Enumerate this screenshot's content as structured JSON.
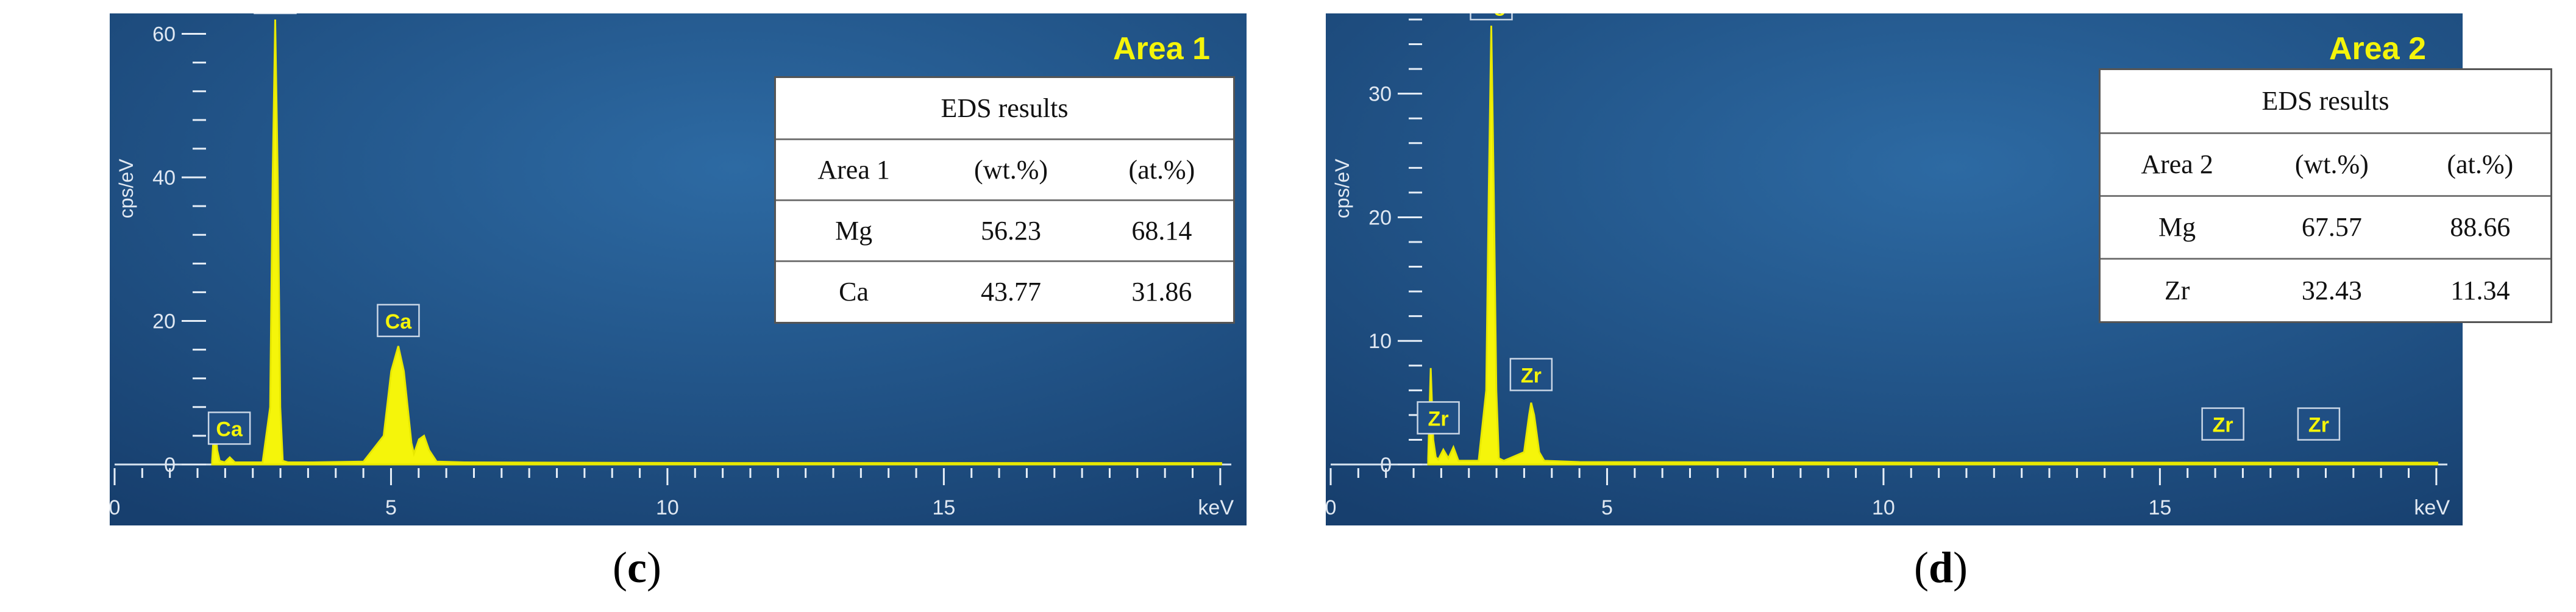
{
  "panels": [
    {
      "caption": "c",
      "area_label": "Area 1",
      "table": {
        "title": "EDS results",
        "header": [
          "Area 1",
          "(wt.%)",
          "(at.%)"
        ],
        "rows": [
          [
            "Mg",
            "56.23",
            "68.14"
          ],
          [
            "Ca",
            "43.77",
            "31.86"
          ]
        ]
      }
    },
    {
      "caption": "d",
      "area_label": "Area 2",
      "table": {
        "title": "EDS results",
        "header": [
          "Area 2",
          "(wt.%)",
          "(at.%)"
        ],
        "rows": [
          [
            "Mg",
            "67.57",
            "88.66"
          ],
          [
            "Zr",
            "32.43",
            "11.34"
          ]
        ]
      }
    }
  ],
  "chart_data": [
    {
      "type": "line",
      "title": "",
      "xlabel": "keV",
      "ylabel": "cps/eV",
      "xlim": [
        0,
        20.2
      ],
      "ylim": [
        0,
        62
      ],
      "xticks": [
        0,
        5,
        10,
        15
      ],
      "yticks": [
        0,
        20,
        40,
        60
      ],
      "series": [
        {
          "x": [
            0.0,
            0.05,
            0.1,
            0.15,
            0.25,
            0.35,
            0.45,
            0.6,
            1.0,
            1.15,
            1.2,
            1.25,
            1.3,
            1.35,
            1.4,
            1.5,
            2.0,
            3.0,
            3.4,
            3.55,
            3.69,
            3.8,
            3.95,
            4.0,
            4.1,
            4.2,
            4.3,
            4.45,
            5.0,
            10.0,
            20.0
          ],
          "y": [
            0.5,
            6.5,
            2.0,
            0.5,
            0.3,
            1.0,
            0.3,
            0.3,
            0.3,
            8.0,
            40.0,
            62.0,
            40.0,
            8.0,
            0.5,
            0.3,
            0.3,
            0.4,
            4.0,
            13.0,
            16.5,
            13.0,
            3.0,
            1.5,
            3.5,
            4.0,
            2.0,
            0.4,
            0.3,
            0.2,
            0.2
          ]
        }
      ],
      "peak_labels": [
        {
          "label": "Mg",
          "x": 1.25,
          "y": 62
        },
        {
          "label": "Ca",
          "x": 3.69,
          "y": 17
        },
        {
          "label": "Ca",
          "x": 0.34,
          "y": 2
        }
      ]
    },
    {
      "type": "line",
      "title": "",
      "xlabel": "keV",
      "ylabel": "cps/eV",
      "xlim": [
        0,
        20.2
      ],
      "ylim": [
        0,
        36
      ],
      "xticks": [
        0,
        5,
        10,
        15
      ],
      "yticks": [
        0,
        10,
        20,
        30
      ],
      "series": [
        {
          "x": [
            0.0,
            0.05,
            0.1,
            0.15,
            0.2,
            0.3,
            0.4,
            0.5,
            0.6,
            1.0,
            1.15,
            1.2,
            1.25,
            1.3,
            1.35,
            1.4,
            1.5,
            1.9,
            2.0,
            2.04,
            2.1,
            2.2,
            2.3,
            3.0,
            10.0,
            20.0
          ],
          "y": [
            0.5,
            7.8,
            2.0,
            0.6,
            0.4,
            1.2,
            0.5,
            1.4,
            0.3,
            0.3,
            6.0,
            22.0,
            35.5,
            22.0,
            6.0,
            0.5,
            0.3,
            1.0,
            4.0,
            5.0,
            4.0,
            1.0,
            0.3,
            0.2,
            0.15,
            0.15
          ]
        }
      ],
      "peak_labels": [
        {
          "label": "Mg",
          "x": 1.25,
          "y": 35.5
        },
        {
          "label": "Zr",
          "x": 2.04,
          "y": 5.5
        },
        {
          "label": "Zr",
          "x": 0.2,
          "y": 2
        },
        {
          "label": "Zr",
          "x": 15.75,
          "y": 1.5
        },
        {
          "label": "Zr",
          "x": 17.65,
          "y": 1.5
        }
      ]
    }
  ]
}
